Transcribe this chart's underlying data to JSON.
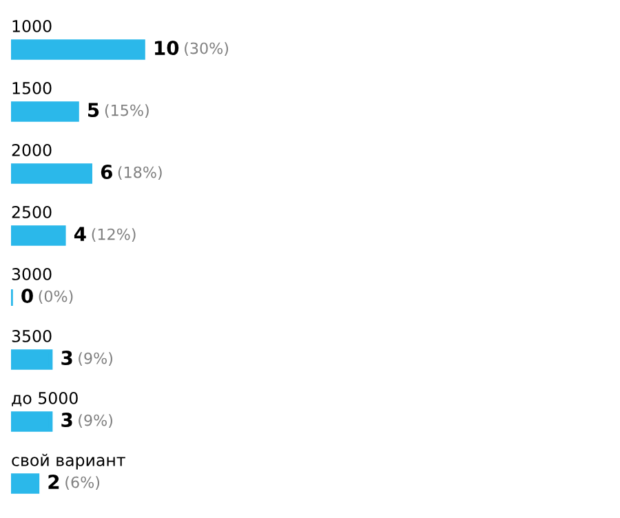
{
  "chart_data": {
    "type": "bar",
    "orientation": "horizontal",
    "categories": [
      "1000",
      "1500",
      "2000",
      "2500",
      "3000",
      "3500",
      "до 5000",
      "свой вариант"
    ],
    "values": [
      10,
      5,
      6,
      4,
      0,
      3,
      3,
      2
    ],
    "value_labels": [
      "10 (30%)",
      "5 (15%)",
      "6 (18%)",
      "4 (12%)",
      "0 (0%)",
      "3 (9%)",
      "3 (9%)",
      "2 (6%)"
    ],
    "color": "#2bb8ea"
  }
}
